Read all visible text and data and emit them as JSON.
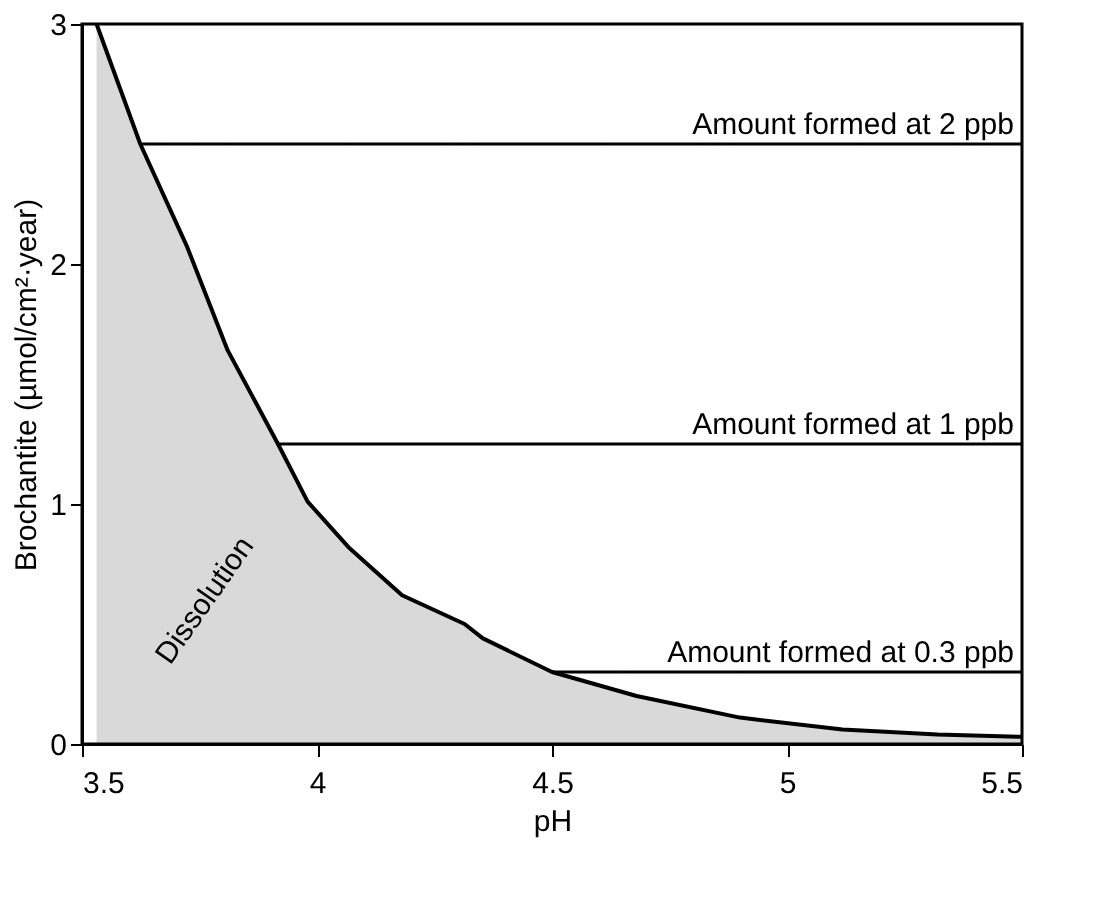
{
  "chart_data": {
    "type": "area",
    "xlabel": "pH",
    "ylabel": "Brochantite (µmol/cm²·year)",
    "x": [
      3.531,
      3.624,
      3.724,
      3.81,
      3.917,
      3.98,
      4.067,
      4.181,
      4.314,
      4.353,
      4.5,
      4.68,
      4.9,
      5.118,
      5.32,
      5.5
    ],
    "series": [
      {
        "color": "#000000",
        "values": [
          3,
          2.5,
          2.07,
          1.64,
          1.25,
          1.01,
          0.82,
          0.62,
          0.5,
          0.44,
          0.3,
          0.2,
          0.11,
          0.06,
          0.04,
          0.03
        ]
      }
    ],
    "xlim": [
      3.5,
      5.5
    ],
    "ylim": [
      0,
      3
    ],
    "xticks": [
      3.5,
      4,
      4.5,
      5,
      5.5
    ],
    "yticks": [
      0,
      1,
      2,
      3
    ],
    "ref_lines": [
      {
        "axis": "y",
        "value": 2.5,
        "label": "Amount formed at 2 ppb"
      },
      {
        "axis": "y",
        "value": 1.25,
        "label": "Amount formed at 1 ppb"
      },
      {
        "axis": "y",
        "value": 0.3,
        "label": "Amount formed at 0.3 ppb"
      }
    ],
    "annotations": [
      "Dissolution"
    ],
    "grid": false
  }
}
